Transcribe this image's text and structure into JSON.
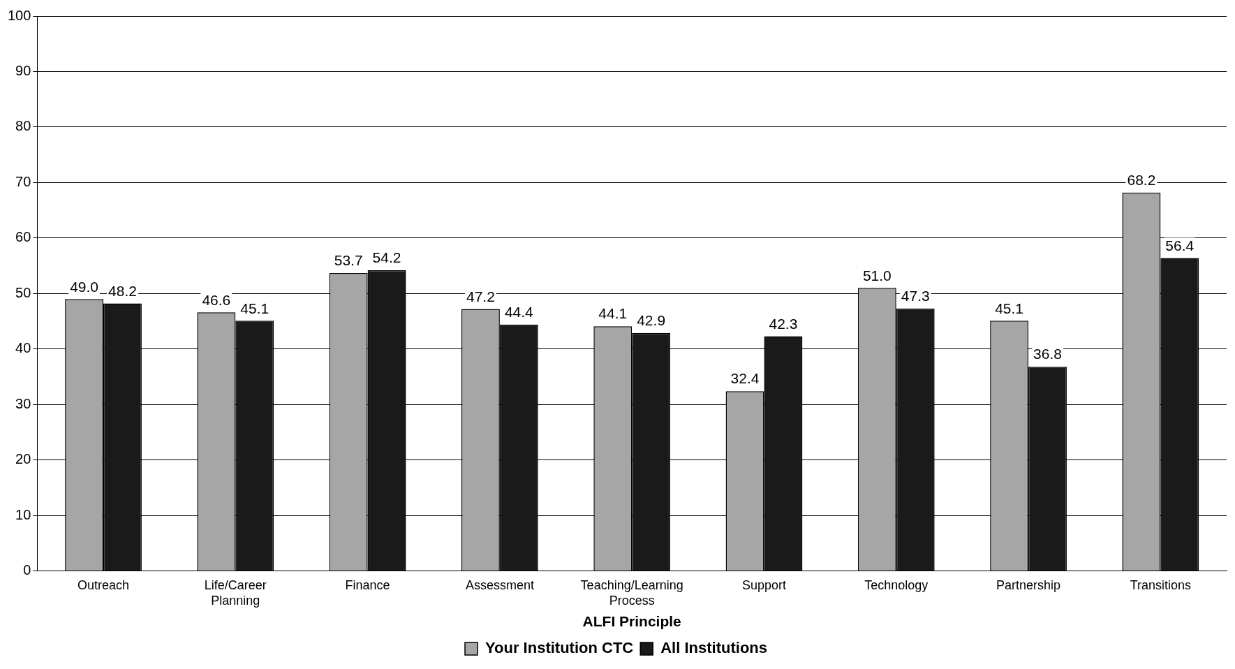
{
  "chart_data": {
    "type": "bar",
    "xlabel": "ALFI Principle",
    "categories": [
      "Outreach",
      "Life/Career Planning",
      "Finance",
      "Assessment",
      "Teaching/Learning Process",
      "Support",
      "Technology",
      "Partnership",
      "Transitions"
    ],
    "series": [
      {
        "name": "Your Institution CTC",
        "color": "#a6a6a6",
        "values": [
          49.0,
          46.6,
          53.7,
          47.2,
          44.1,
          32.4,
          51.0,
          45.1,
          68.2
        ],
        "value_labels": [
          "49.0",
          "46.6",
          "53.7",
          "47.2",
          "44.1",
          "32.4",
          "51.0",
          "45.1",
          "68.2"
        ]
      },
      {
        "name": "All Institutions",
        "color": "#1a1a1a",
        "values": [
          48.2,
          45.1,
          54.2,
          44.4,
          42.9,
          42.3,
          47.3,
          36.8,
          56.4
        ],
        "value_labels": [
          "48.2",
          "45.1",
          "54.2",
          "44.4",
          "42.9",
          "42.3",
          "47.3",
          "36.8",
          "56.4"
        ]
      }
    ],
    "ylim": [
      0,
      100
    ],
    "yticks": [
      0,
      10,
      20,
      30,
      40,
      50,
      60,
      70,
      80,
      90,
      100
    ],
    "grid": "y",
    "legend": "bottom"
  }
}
